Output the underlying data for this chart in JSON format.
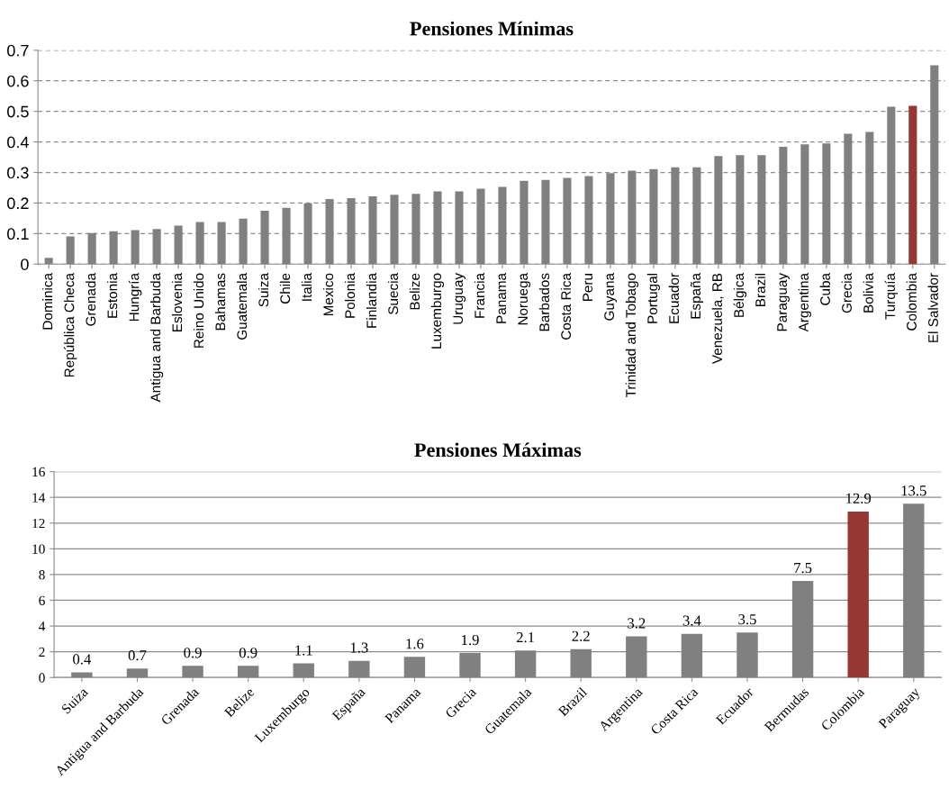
{
  "chart_data": [
    {
      "type": "bar",
      "title": "Pensiones Mínimas",
      "categories": [
        "Dominica",
        "República Checa",
        "Grenada",
        "Estonia",
        "Hungría",
        "Antigua and Barbuda",
        "Eslovenia",
        "Reino Unido",
        "Bahamas",
        "Guatemala",
        "Suiza",
        "Chile",
        "Italia",
        "Mexico",
        "Polonia",
        "Finlandia",
        "Suecia",
        "Belize",
        "Luxemburgo",
        "Uruguay",
        "Francia",
        "Panama",
        "Noruega",
        "Barbados",
        "Costa Rica",
        "Peru",
        "Guyana",
        "Trinidad and Tobago",
        "Portugal",
        "Ecuador",
        "España",
        "Venezuela, RB",
        "Bélgica",
        "Brazil",
        "Paraguay",
        "Argentina",
        "Cuba",
        "Grecia",
        "Bolivia",
        "Turquía",
        "Colombia",
        "El Salvador"
      ],
      "values": [
        0.021,
        0.091,
        0.102,
        0.108,
        0.111,
        0.115,
        0.126,
        0.138,
        0.138,
        0.149,
        0.175,
        0.184,
        0.199,
        0.213,
        0.216,
        0.222,
        0.227,
        0.23,
        0.238,
        0.238,
        0.247,
        0.253,
        0.273,
        0.276,
        0.282,
        0.288,
        0.298,
        0.306,
        0.311,
        0.317,
        0.317,
        0.354,
        0.357,
        0.357,
        0.384,
        0.392,
        0.395,
        0.427,
        0.433,
        0.515,
        0.518,
        0.651
      ],
      "colors": [
        "#808080",
        "#808080",
        "#808080",
        "#808080",
        "#808080",
        "#808080",
        "#808080",
        "#808080",
        "#808080",
        "#808080",
        "#808080",
        "#808080",
        "#808080",
        "#808080",
        "#808080",
        "#808080",
        "#808080",
        "#808080",
        "#808080",
        "#808080",
        "#808080",
        "#808080",
        "#808080",
        "#808080",
        "#808080",
        "#808080",
        "#808080",
        "#808080",
        "#808080",
        "#808080",
        "#808080",
        "#808080",
        "#808080",
        "#808080",
        "#808080",
        "#808080",
        "#808080",
        "#808080",
        "#808080",
        "#808080",
        "#953735",
        "#808080"
      ],
      "ylim": [
        0,
        0.7
      ],
      "yticks": [
        0,
        0.1,
        0.2,
        0.3,
        0.4,
        0.5,
        0.6,
        0.7
      ],
      "grid": "y"
    },
    {
      "type": "bar",
      "title": "Pensiones Máximas",
      "categories": [
        "Suiza",
        "Antigua and Barbuda",
        "Grenada",
        "Belize",
        "Luxemburgo",
        "España",
        "Panama",
        "Grecia",
        "Guatemala",
        "Brazil",
        "Argentina",
        "Costa Rica",
        "Ecuador",
        "Bermudas",
        "Colombia",
        "Paraguay"
      ],
      "values": [
        0.4,
        0.7,
        0.9,
        0.9,
        1.1,
        1.3,
        1.6,
        1.9,
        2.1,
        2.2,
        3.2,
        3.4,
        3.5,
        7.5,
        12.9,
        13.5
      ],
      "colors": [
        "#808080",
        "#808080",
        "#808080",
        "#808080",
        "#808080",
        "#808080",
        "#808080",
        "#808080",
        "#808080",
        "#808080",
        "#808080",
        "#808080",
        "#808080",
        "#808080",
        "#953735",
        "#808080"
      ],
      "data_labels": true,
      "ylim": [
        0,
        16
      ],
      "yticks": [
        0,
        2,
        4,
        6,
        8,
        10,
        12,
        14,
        16
      ],
      "grid": "y"
    }
  ]
}
